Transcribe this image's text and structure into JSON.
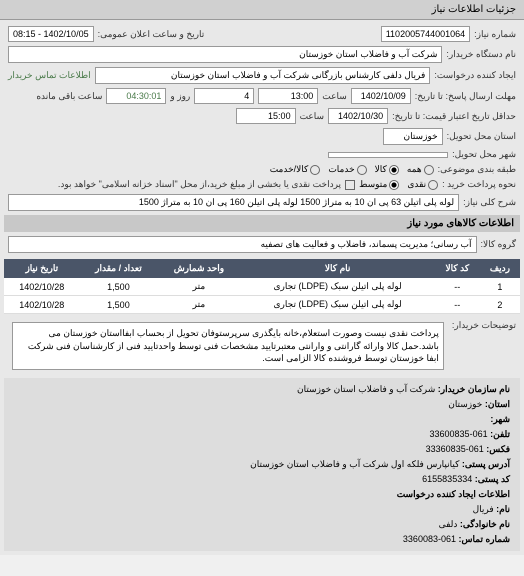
{
  "tab_title": "جزئیات اطلاعات نیاز",
  "req_number_label": "شماره نیاز:",
  "req_number": "1102005744001064",
  "announce_label": "تاریخ و ساعت اعلان عمومی:",
  "announce_value": "1402/10/05 - 08:15",
  "buyer_org_label": "نام دستگاه خریدار:",
  "buyer_org": "شرکت آب و فاضلاب استان خوزستان",
  "creator_label": "ایجاد کننده درخواست:",
  "creator_value": "فریال دلفی کارشناس بازرگانی شرکت آب و فاضلاب استان خوزستان",
  "creator_link": "اطلاعات تماس خریدار",
  "deadline_label": "مهلت ارسال پاسخ: تا تاریخ:",
  "deadline_date": "1402/10/09",
  "time_label": "ساعت",
  "deadline_time": "13:00",
  "days_label": "روز و",
  "days_value": "4",
  "remain_label": "ساعت باقی مانده",
  "remain_time": "04:30:01",
  "delivery_label": "حداقل تاریخ اعتبار قیمت: تا تاریخ:",
  "delivery_date": "1402/10/30",
  "delivery_time": "15:00",
  "province_label": "استان محل تحویل:",
  "province": "خوزستان",
  "city_label": "شهر محل تحویل:",
  "class_label": "طبقه بندی موضوعی:",
  "radio_all": "همه",
  "radio_goods": "کالا",
  "radio_services": "خدمات",
  "radio_service_goods": "کالا/خدمت",
  "payment_label": "نحوه پرداخت خرید :",
  "radio_cash": "نقدی",
  "radio_medium": "متوسط",
  "payment_note": "پرداخت نقدی یا بخشی از مبلغ خرید،از محل \"اسناد خزانه اسلامی\" خواهد بود.",
  "need_desc_label": "شرح کلی نیاز:",
  "need_desc": "لوله پلی اتیلن 63 پی ان 10 به متراژ 1500 لوله پلی اتیلن 160 پی ان 10 به متراژ 1500",
  "goods_section": "اطلاعات کالاهای مورد نیاز",
  "group_label": "گروه کالا:",
  "group_value": "آب رسانی؛ مدیریت پسماند، فاضلاب و فعالیت های تصفیه",
  "table": {
    "headers": [
      "ردیف",
      "کد کالا",
      "نام کالا",
      "واحد شمارش",
      "تعداد / مقدار",
      "تاریخ نیاز"
    ],
    "rows": [
      [
        "1",
        "--",
        "لوله پلی اتیلن سبک (LDPE) تجاری",
        "متر",
        "1,500",
        "1402/10/28"
      ],
      [
        "2",
        "--",
        "لوله پلی اتیلن سبک (LDPE) تجاری",
        "متر",
        "1,500",
        "1402/10/28"
      ]
    ]
  },
  "buyer_notes_label": "توضیحات خریدار:",
  "buyer_notes": "پرداخت نقدی نیست وصورت استعلام،خانه بایگذری سرپرستوفان تحویل از بحساب ابفااستان خوزستان می باشد.حمل کالا وارائه گارانتی و وارانتی معتبرتایید مشخصات فنی توسط واحدتایید فنی از کارشناسان فنی شرکت ابفا خوزستان توسط فروشنده کالا الزامی است.",
  "org_info": {
    "name_label": "نام سازمان خریدار:",
    "name": "شرکت آب و فاضلاب استان خوزستان",
    "province_label": "استان:",
    "province": "خوزستان",
    "city_label": "شهر:",
    "phone_label": "تلفن:",
    "phone": "061-33600835",
    "fax_label": "فکس:",
    "fax": "061-33360835",
    "address_label": "آدرس پستی:",
    "address": "کیانپارس فلکه اول شرکت آب و فاضلاب استان خوزستان",
    "post_label": "کد پستی:",
    "post": "6155835334",
    "subcat_label": "اطلاعات ایجاد کننده درخواست",
    "sub_name_label": "نام:",
    "sub_name": "فریال",
    "sub_family_label": "نام خانوادگی:",
    "sub_family": "دلفی",
    "sub_phone_label": "شماره تماس:",
    "sub_phone": "061-3360083"
  }
}
